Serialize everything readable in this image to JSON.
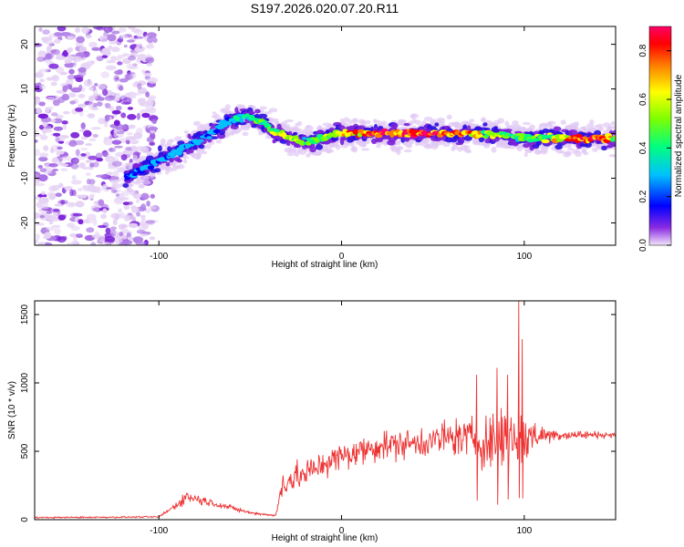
{
  "title": "S197.2026.020.07.20.R11",
  "chart_data": [
    {
      "type": "heatmap",
      "name": "spectrogram",
      "xlabel": "Height of straight line (km)",
      "ylabel": "Frequency (Hz)",
      "xlim": [
        -168,
        150
      ],
      "ylim": [
        -25,
        24
      ],
      "xticks": [
        -100,
        0,
        100
      ],
      "yticks": [
        -20,
        -10,
        0,
        10,
        20
      ],
      "colorbar": {
        "label": "Normalized spectral amplitude",
        "range": [
          0,
          0.9
        ],
        "ticks": [
          "0.0",
          "0.2",
          "0.4",
          "0.6",
          "0.8"
        ],
        "colors": [
          "#f2e6fa",
          "#8a2be2",
          "#0000ff",
          "#00c0ff",
          "#00ff80",
          "#7fff00",
          "#ffff00",
          "#ff8000",
          "#ff0000",
          "#ff0066"
        ]
      },
      "ridge": {
        "x": [
          -118,
          -100,
          -80,
          -60,
          -52,
          -45,
          -35,
          -20,
          -10,
          0,
          20,
          50,
          80,
          100,
          120,
          140,
          150
        ],
        "frequency": [
          -10,
          -6,
          -2,
          3,
          4,
          3,
          0,
          -2,
          -1,
          0,
          0,
          0,
          0,
          -1,
          -1,
          -1,
          -1
        ],
        "amplitude": [
          0.25,
          0.28,
          0.3,
          0.32,
          0.35,
          0.4,
          0.55,
          0.45,
          0.5,
          0.6,
          0.75,
          0.85,
          0.55,
          0.4,
          0.6,
          0.85,
          0.5
        ]
      },
      "noise_region_x": [
        -168,
        -102
      ]
    },
    {
      "type": "line",
      "name": "snr",
      "xlabel": "Height of straight line (km)",
      "ylabel": "SNR (10 * v/v)",
      "xlim": [
        -168,
        150
      ],
      "ylim": [
        0,
        1600
      ],
      "xticks": [
        -100,
        0,
        100
      ],
      "yticks": [
        0,
        500,
        1000,
        1500
      ],
      "color": "#ee3333",
      "envelope": {
        "x": [
          -168,
          -100,
          -90,
          -85,
          -70,
          -50,
          -36,
          -32,
          -20,
          -10,
          0,
          20,
          40,
          60,
          70,
          80,
          90,
          96,
          100,
          110,
          120,
          150
        ],
        "level": [
          15,
          20,
          110,
          170,
          120,
          50,
          30,
          280,
          330,
          410,
          460,
          540,
          560,
          600,
          600,
          560,
          620,
          600,
          600,
          620,
          620,
          620
        ],
        "spread": [
          8,
          8,
          40,
          70,
          40,
          15,
          10,
          180,
          160,
          150,
          160,
          160,
          160,
          200,
          220,
          300,
          380,
          400,
          300,
          100,
          60,
          30
        ]
      },
      "peaks": [
        {
          "x": 97,
          "value": 1600
        },
        {
          "x": 99,
          "value": 1320
        },
        {
          "x": 85,
          "value": 1110
        },
        {
          "x": 91,
          "value": 1060
        },
        {
          "x": 74,
          "value": 1060
        }
      ]
    }
  ]
}
